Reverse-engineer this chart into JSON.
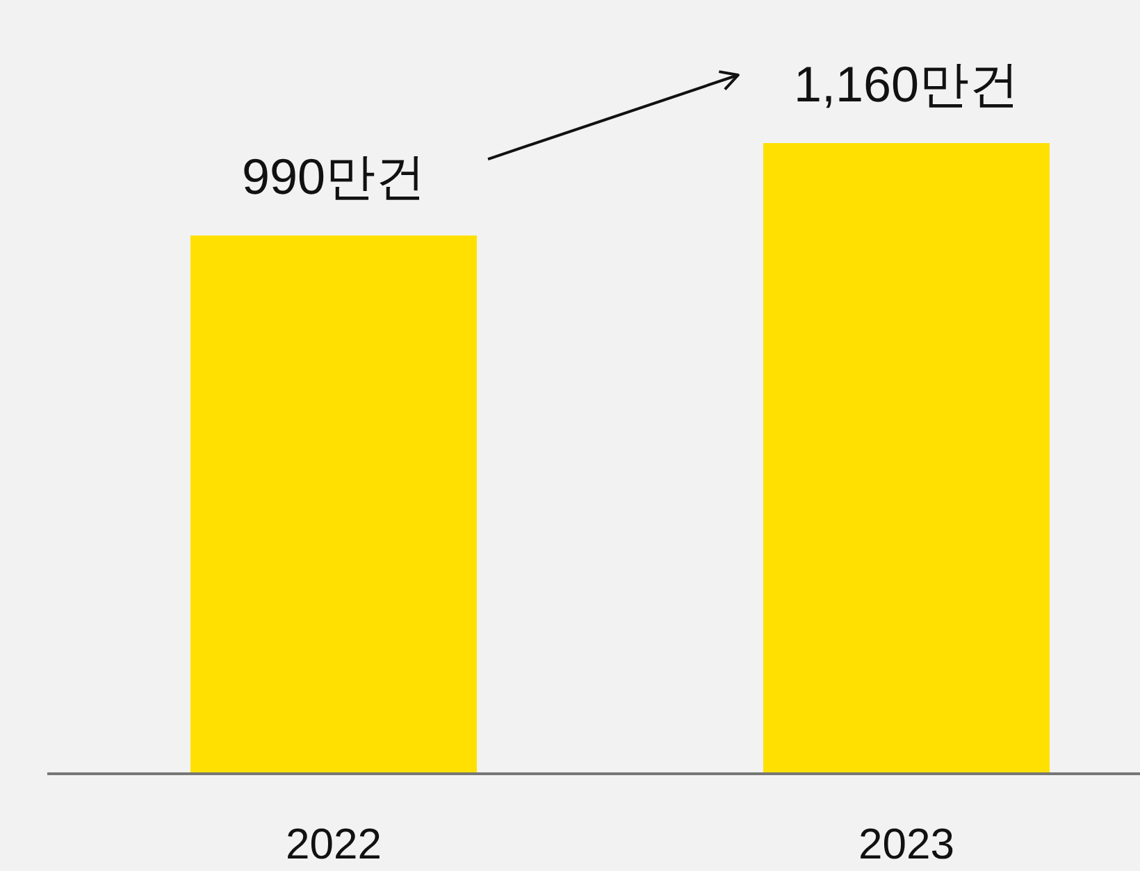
{
  "chart_data": {
    "type": "bar",
    "categories": [
      "2022",
      "2023"
    ],
    "values": [
      990,
      1160
    ],
    "value_labels": [
      "990만건",
      "1,160만건"
    ],
    "color": "#ffe000"
  }
}
